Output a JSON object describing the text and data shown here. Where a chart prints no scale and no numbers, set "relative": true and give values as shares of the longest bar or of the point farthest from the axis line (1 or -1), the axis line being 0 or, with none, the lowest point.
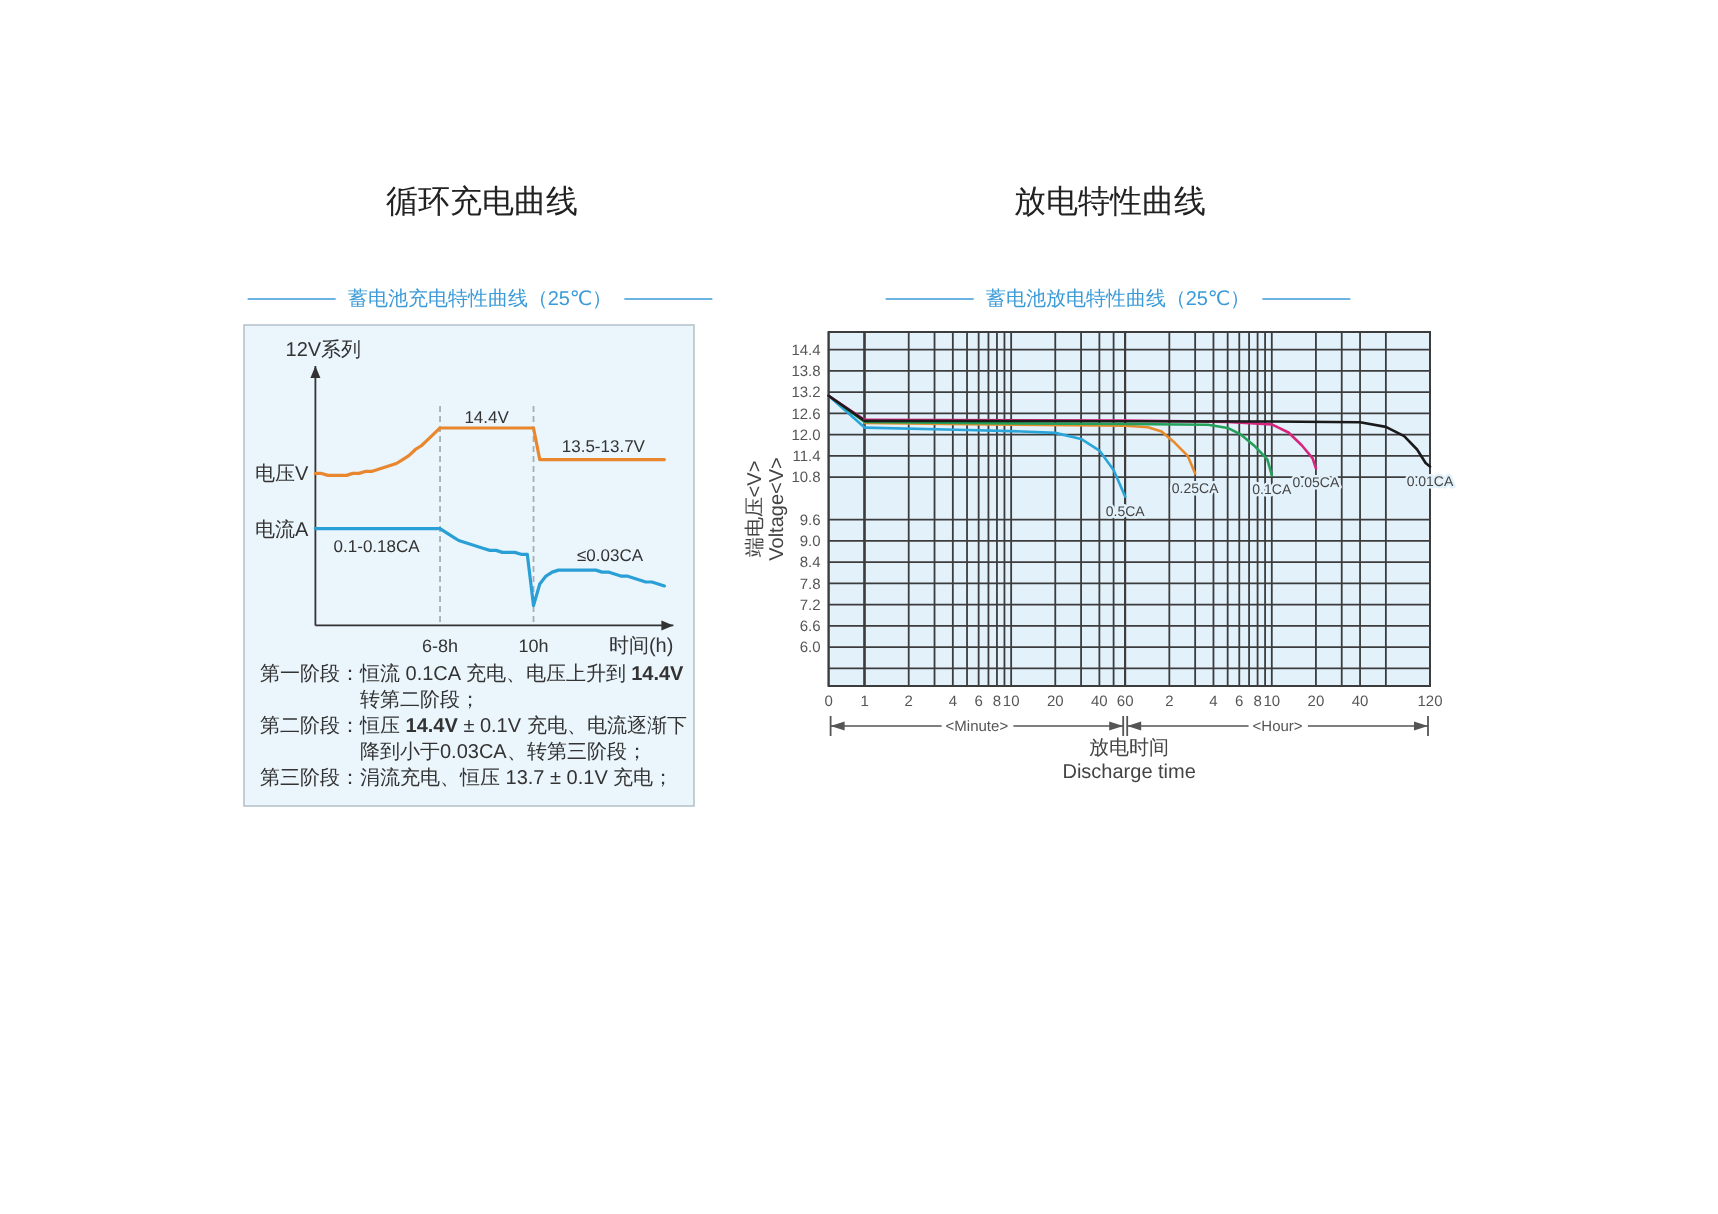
{
  "chart_data": [
    {
      "type": "line",
      "title": "循环充电曲线",
      "subtitle": "蓄电池充电特性曲线（25℃）",
      "xlabel": "时间(h)",
      "ylabel": "12V系列",
      "relative": true,
      "grid": "x",
      "categories": [
        null,
        null,
        null,
        null,
        null,
        null,
        null,
        null,
        null,
        null,
        null,
        null,
        null,
        null,
        null,
        null,
        null,
        null,
        null,
        null,
        "6-8h",
        null,
        null,
        null,
        null,
        null,
        null,
        null,
        null,
        null,
        null,
        null,
        null,
        null,
        null,
        "10h",
        null,
        null,
        null,
        null,
        null,
        null,
        null,
        null,
        null,
        null,
        null,
        null,
        null,
        null,
        null,
        null,
        null,
        null,
        null,
        null,
        null
      ],
      "series": [
        {
          "name": "电压V",
          "color": "#e8872e",
          "values": [
            0.77,
            0.77,
            0.76,
            0.76,
            0.76,
            0.76,
            0.77,
            0.77,
            0.78,
            0.78,
            0.79,
            0.8,
            0.81,
            0.82,
            0.84,
            0.86,
            0.89,
            0.91,
            0.94,
            0.97,
            1,
            1,
            1,
            1,
            1,
            1,
            1,
            1,
            1,
            1,
            1,
            1,
            1,
            1,
            1,
            1,
            0.84,
            0.84,
            0.84,
            0.84,
            0.84,
            0.84,
            0.84,
            0.84,
            0.84,
            0.84,
            0.84,
            0.84,
            0.84,
            0.84,
            0.84,
            0.84,
            0.84,
            0.84,
            0.84,
            0.84,
            0.84
          ]
        },
        {
          "name": "电流A",
          "color": "#2a9fd6",
          "values": [
            0.49,
            0.49,
            0.49,
            0.49,
            0.49,
            0.49,
            0.49,
            0.49,
            0.49,
            0.49,
            0.49,
            0.49,
            0.49,
            0.49,
            0.49,
            0.49,
            0.49,
            0.49,
            0.49,
            0.49,
            0.49,
            0.47,
            0.45,
            0.43,
            0.42,
            0.41,
            0.4,
            0.39,
            0.38,
            0.38,
            0.37,
            0.37,
            0.37,
            0.36,
            0.36,
            0.1,
            0.21,
            0.25,
            0.27,
            0.28,
            0.28,
            0.28,
            0.28,
            0.28,
            0.28,
            0.28,
            0.27,
            0.27,
            0.26,
            0.25,
            0.25,
            0.24,
            0.23,
            0.22,
            0.22,
            0.21,
            0.2
          ]
        }
      ],
      "annotations": [
        "14.4V",
        "13.5-13.7V",
        "0.1-0.18CA",
        "≤0.03CA",
        "第一阶段：恒流 0.1CA 充电、电压上升到 **14.4V** 转第二阶段；",
        "第二阶段：恒压 **14.4V** ± 0.1V 充电、电流逐渐下降到小于0.03CA、转第三阶段；",
        "第三阶段：涓流充电、恒压 13.7 ± 0.1V 充电；"
      ]
    },
    {
      "type": "line",
      "ylabel": "端电压<V>\nVoltage<V>",
      "grid": true,
      "xlim": [
        0,
        1
      ],
      "xticks": [
        0,
        1
      ],
      "ylim": [
        4.9,
        14.9
      ],
      "yticks": [
        14.4,
        13.8,
        13.2,
        12.6,
        {
          "value": 12,
          "label": "12.0"
        },
        11.4,
        10.8,
        9.6,
        {
          "value": 9,
          "label": "9.0"
        },
        8.4,
        7.8,
        7.2,
        6.6,
        {
          "value": 6,
          "label": "6.0"
        },
        {
          "value": 5.4,
          "label": null
        }
      ],
      "series": [
        {
          "color": "#2aa5d9",
          "x": [
            0,
            1
          ],
          "values": [
            13.1,
            12.2
          ]
        },
        {
          "color": "#23a05a",
          "x": [
            0,
            1
          ],
          "values": [
            13.1,
            12.36
          ]
        },
        {
          "color": "#d6257e",
          "x": [
            0,
            1
          ],
          "values": [
            13.1,
            12.42
          ]
        },
        {
          "color": "#1a1a1a",
          "x": [
            0,
            1
          ],
          "values": [
            13.1,
            12.39
          ]
        }
      ]
    },
    {
      "type": "line",
      "title": "放电特性曲线",
      "subtitle": "蓄电池放电特性曲线（25℃）",
      "xlabel": "放电时间\nDischarge time",
      "log": "x",
      "grid": true,
      "tick_labels": "x",
      "xlim": [
        1,
        60
      ],
      "xticks": [
        {
          "value": 1,
          "label": null
        },
        2,
        {
          "value": 3,
          "label": null
        },
        4,
        {
          "value": 5,
          "label": null
        },
        6,
        {
          "value": 7,
          "label": null
        },
        8,
        {
          "value": 9,
          "label": null
        },
        10,
        20,
        {
          "value": 30,
          "label": null
        },
        40,
        {
          "value": 50,
          "label": null
        },
        60
      ],
      "ylim": [
        4.9,
        14.9
      ],
      "yticks": [
        14.4,
        13.8,
        13.2,
        12.6,
        12,
        11.4,
        10.8,
        9.6,
        9,
        8.4,
        7.8,
        7.2,
        6.6,
        6,
        5.4
      ],
      "annotations": [
        "<Minute>"
      ],
      "series": [
        {
          "name": "0.5CA",
          "color": "#2aa5d9",
          "x": [
            1,
            5,
            10,
            20,
            30,
            40,
            50,
            60
          ],
          "values": [
            12.2,
            12.13,
            12.1,
            12.05,
            11.88,
            11.55,
            11.0,
            10.25
          ]
        },
        {
          "color": "#e88b2c",
          "x": [
            1,
            10,
            60
          ],
          "values": [
            12.33,
            12.28,
            12.25
          ]
        },
        {
          "color": "#23a05a",
          "x": [
            1,
            10,
            60
          ],
          "values": [
            12.36,
            12.32,
            12.3
          ]
        },
        {
          "color": "#d6257e",
          "x": [
            1,
            60
          ],
          "values": [
            12.42,
            12.4
          ]
        },
        {
          "color": "#1a1a1a",
          "x": [
            1,
            60
          ],
          "values": [
            12.39,
            12.38
          ]
        }
      ]
    },
    {
      "type": "line",
      "log": "x",
      "grid": true,
      "tick_labels": "x",
      "xlim": [
        1,
        120
      ],
      "xticks": [
        2,
        {
          "value": 3,
          "label": null
        },
        4,
        {
          "value": 5,
          "label": null
        },
        6,
        {
          "value": 7,
          "label": null
        },
        8,
        {
          "value": 9,
          "label": null
        },
        10,
        20,
        {
          "value": 30,
          "label": null
        },
        40,
        {
          "value": 60,
          "label": null
        },
        120
      ],
      "ylim": [
        4.9,
        14.9
      ],
      "yticks": [
        14.4,
        13.8,
        13.2,
        12.6,
        12,
        11.4,
        10.8,
        9.6,
        9,
        8.4,
        7.8,
        7.2,
        6.6,
        6,
        5.4
      ],
      "annotations": [
        "<Hour>"
      ],
      "series": [
        {
          "name": "0.25CA",
          "color": "#e88b2c",
          "x": [
            1,
            1.43,
            1.77,
            2.18,
            2.67,
            3
          ],
          "values": [
            12.25,
            12.21,
            12.09,
            11.77,
            11.4,
            10.9
          ]
        },
        {
          "name": "0.1CA",
          "color": "#23a05a",
          "x": [
            1,
            3.67,
            5,
            6.17,
            7.67,
            9.33,
            10
          ],
          "values": [
            12.3,
            12.28,
            12.19,
            12.0,
            11.67,
            11.3,
            10.85
          ]
        },
        {
          "name": "0.05CA",
          "color": "#d6257e",
          "x": [
            1,
            5,
            10,
            13,
            16,
            19,
            20
          ],
          "values": [
            12.4,
            12.36,
            12.29,
            12.06,
            11.7,
            11.33,
            11.05
          ]
        },
        {
          "name": "0.01CA",
          "color": "#1a1a1a",
          "x": [
            1,
            10,
            40,
            60,
            80,
            98,
            112,
            120
          ],
          "values": [
            12.38,
            12.37,
            12.35,
            12.22,
            11.96,
            11.58,
            11.2,
            11.1
          ]
        }
      ]
    }
  ]
}
